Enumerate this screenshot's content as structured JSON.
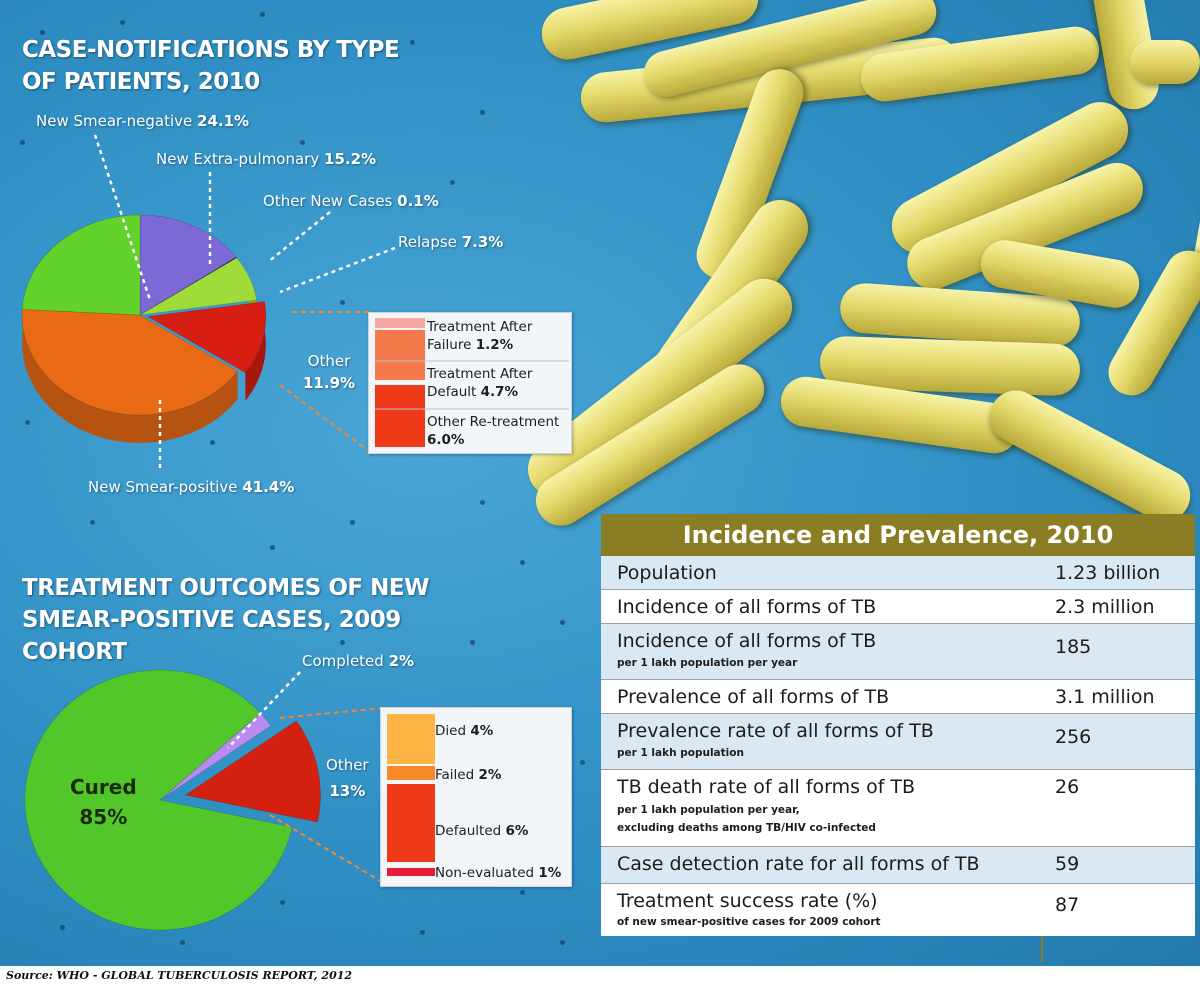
{
  "source": "Source: WHO - GLOBAL TUBERCULOSIS REPORT, 2012",
  "chart_data": [
    {
      "type": "pie",
      "title": "CASE-NOTIFICATIONS BY TYPE OF PATIENTS, 2010",
      "slices": [
        {
          "label": "New Smear-positive",
          "value": 41.4,
          "text": "41.4%",
          "color": "#e96a14"
        },
        {
          "label": "New Smear-negative",
          "value": 24.1,
          "text": "24.1%",
          "color": "#63d22a"
        },
        {
          "label": "New Extra-pulmonary",
          "value": 15.2,
          "text": "15.2%",
          "color": "#7c69d6"
        },
        {
          "label": "Other New Cases",
          "value": 0.1,
          "text": "0.1%",
          "color": "#1a1a1a"
        },
        {
          "label": "Relapse",
          "value": 7.3,
          "text": "7.3%",
          "color": "#9fdc3a"
        },
        {
          "label": "Other",
          "value": 11.9,
          "text": "11.9%",
          "color": "#d81e12"
        }
      ],
      "other_breakdown": [
        {
          "label": "Treatment After Failure",
          "value": 1.2,
          "text": "1.2%",
          "color": "#f6a6a0"
        },
        {
          "label": "Treatment After Default",
          "value": 4.7,
          "text": "4.7%",
          "color": "#f47a4c"
        },
        {
          "label": "Other Re-treatment",
          "value": 6.0,
          "text": "6.0%",
          "color": "#ef3a1a"
        }
      ]
    },
    {
      "type": "pie",
      "title": "TREATMENT OUTCOMES OF NEW SMEAR-POSITIVE CASES, 2009 COHORT",
      "slices": [
        {
          "label": "Cured",
          "value": 85,
          "text": "85%",
          "color": "#52c72a"
        },
        {
          "label": "Completed",
          "value": 2,
          "text": "2%",
          "color": "#b98af0"
        },
        {
          "label": "Other",
          "value": 13,
          "text": "13%",
          "color": "#d4210f"
        }
      ],
      "other_breakdown": [
        {
          "label": "Died",
          "value": 4,
          "text": "4%",
          "color": "#fdb444"
        },
        {
          "label": "Failed",
          "value": 2,
          "text": "2%",
          "color": "#f68a2a"
        },
        {
          "label": "Defaulted",
          "value": 6,
          "text": "6%",
          "color": "#ef3a1a"
        },
        {
          "label": "Non-evaluated",
          "value": 1,
          "text": "1%",
          "color": "#e81a3a"
        }
      ]
    },
    {
      "type": "table",
      "title": "Incidence and Prevalence, 2010",
      "rows": [
        {
          "name": "Population",
          "sub": "",
          "value": "1.23 billion"
        },
        {
          "name": "Incidence of all forms of TB",
          "sub": "",
          "value": "2.3 million"
        },
        {
          "name": "Incidence of all forms of TB",
          "sub": "per 1 lakh population per year",
          "value": "185"
        },
        {
          "name": "Prevalence of all forms of TB",
          "sub": "",
          "value": "3.1 million"
        },
        {
          "name": "Prevalence rate of all forms of TB",
          "sub": "per 1 lakh population",
          "value": "256"
        },
        {
          "name": "TB death rate of all forms of TB",
          "sub": "per 1 lakh population per year,",
          "sub2": "excluding deaths among TB/HIV co-infected",
          "value": "26"
        },
        {
          "name": "Case detection rate for all forms of TB",
          "sub": "",
          "value": "59"
        },
        {
          "name": "Treatment success rate (%)",
          "sub": "of new smear-positive cases for 2009 cohort",
          "value": "87"
        }
      ]
    }
  ]
}
